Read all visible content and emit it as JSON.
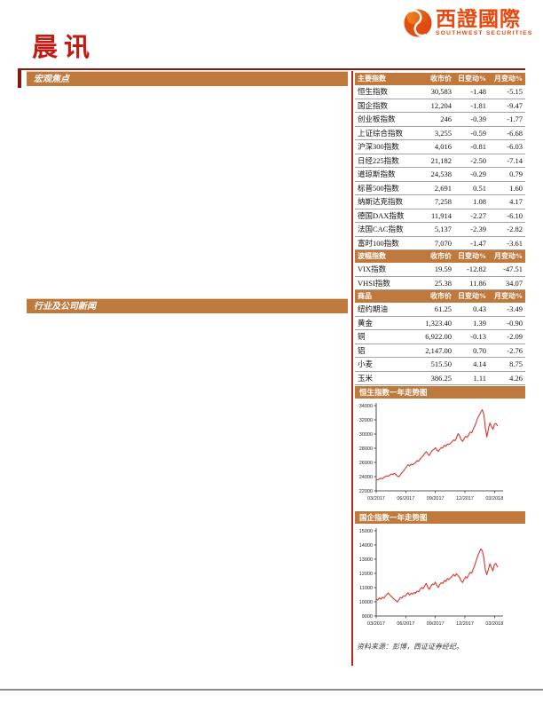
{
  "colors": {
    "accent_orange": "#c0793c",
    "maroon": "#87180e",
    "divider_red": "#c2261a",
    "title_red": "#c01c15",
    "logo_orange": "#e8470d",
    "chart_red": "#d9372b"
  },
  "brand": {
    "name_cn": "西證國際",
    "name_en": "SOUTHWEST SECURITIES"
  },
  "header": {
    "title": "晨讯"
  },
  "left_sections": [
    {
      "label": "宏观焦点"
    },
    {
      "label": "行业及公司新闻"
    }
  ],
  "tables": [
    {
      "id": "major-indices",
      "header": [
        "主要指数",
        "收市价",
        "日变动%",
        "月变动%"
      ],
      "rows": [
        [
          "恒生指数",
          "30,583",
          "-1.48",
          "-5.15"
        ],
        [
          "国企指数",
          "12,204",
          "-1.81",
          "-9.47"
        ],
        [
          "创业板指数",
          "246",
          "-0.39",
          "-1.77"
        ],
        [
          "上证综合指数",
          "3,255",
          "-0.59",
          "-6.68"
        ],
        [
          "沪深300指数",
          "4,016",
          "-0.81",
          "-6.03"
        ],
        [
          "日经225指数",
          "21,182",
          "-2.50",
          "-7.14"
        ],
        [
          "道琼斯指数",
          "24,538",
          "-0.29",
          "0.79"
        ],
        [
          "标普500指数",
          "2,691",
          "0.51",
          "1.60"
        ],
        [
          "纳斯达克指数",
          "7,258",
          "1.08",
          "4.17"
        ],
        [
          "德国DAX指数",
          "11,914",
          "-2.27",
          "-6.10"
        ],
        [
          "法国CAC指数",
          "5,137",
          "-2.39",
          "-2.82"
        ],
        [
          "富时100指数",
          "7,070",
          "-1.47",
          "-3.61"
        ]
      ]
    },
    {
      "id": "volatility-indices",
      "header": [
        "波幅指数",
        "收市价",
        "日变动%",
        "月变动%"
      ],
      "rows": [
        [
          "VIX指数",
          "19.59",
          "-12.82",
          "-47.51"
        ],
        [
          "VHSI指数",
          "25.38",
          "11.86",
          "34.07"
        ]
      ]
    },
    {
      "id": "commodities",
      "header": [
        "商品",
        "收市价",
        "日变动%",
        "月变动%"
      ],
      "rows": [
        [
          "纽约期油",
          "61.25",
          "0.43",
          "-3.49"
        ],
        [
          "黄金",
          "1,323.40",
          "1.39",
          "-0.90"
        ],
        [
          "铜",
          "6,922.00",
          "-0.13",
          "-2.09"
        ],
        [
          "铝",
          "2,147.00",
          "0.70",
          "-2.76"
        ],
        [
          "小麦",
          "515.50",
          "4.14",
          "8.75"
        ],
        [
          "玉米",
          "386.25",
          "1.11",
          "4.26"
        ]
      ]
    }
  ],
  "chart_data": [
    {
      "type": "line",
      "title": "恒生指数一年走势图",
      "x_unit": "months from 03/2017",
      "xlim": [
        0,
        12.6
      ],
      "x_end": 12.3,
      "ylim": [
        22000,
        34000
      ],
      "yticks": [
        22000,
        24000,
        26000,
        28000,
        30000,
        32000,
        34000
      ],
      "xticks": [
        {
          "pos": 0,
          "label": "03/2017"
        },
        {
          "pos": 3,
          "label": "06/2017"
        },
        {
          "pos": 6,
          "label": "09/2017"
        },
        {
          "pos": 9,
          "label": "12/2017"
        },
        {
          "pos": 12,
          "label": "03/2018"
        }
      ],
      "line_color": "#d9372b",
      "values": [
        23620,
        23540,
        23660,
        23780,
        23700,
        23880,
        24000,
        24120,
        24060,
        24220,
        24380,
        24300,
        24480,
        24280,
        24080,
        23980,
        24280,
        24560,
        24800,
        25100,
        25380,
        25680,
        25520,
        25760,
        25660,
        25840,
        25980,
        26280,
        26160,
        26500,
        26760,
        26940,
        27240,
        27520,
        27220,
        26980,
        27380,
        27700,
        27820,
        28080,
        27760,
        27560,
        27880,
        28100,
        28060,
        28420,
        28280,
        28580,
        28520,
        28700,
        28880,
        29180,
        29060,
        29480,
        30060,
        29760,
        29220,
        28960,
        29360,
        29660,
        29520,
        29880,
        30280,
        30180,
        30680,
        31100,
        31680,
        32280,
        32640,
        33080,
        33420,
        32780,
        30880,
        29580,
        30760,
        31560,
        31080,
        30680,
        31380,
        31500,
        31160
      ]
    },
    {
      "type": "line",
      "title": "国企指数一年走势图",
      "x_unit": "months from 03/2017",
      "xlim": [
        0,
        12.6
      ],
      "x_end": 12.3,
      "ylim": [
        9000,
        15000
      ],
      "yticks": [
        9000,
        10000,
        11000,
        12000,
        13000,
        14000,
        15000
      ],
      "xticks": [
        {
          "pos": 0,
          "label": "03/2017"
        },
        {
          "pos": 3,
          "label": "06/2017"
        },
        {
          "pos": 6,
          "label": "09/2017"
        },
        {
          "pos": 9,
          "label": "12/2017"
        },
        {
          "pos": 12,
          "label": "03/2018"
        }
      ],
      "line_color": "#d9372b",
      "values": [
        10220,
        10120,
        10280,
        10180,
        10320,
        10260,
        10400,
        10520,
        10620,
        10480,
        10380,
        10260,
        10160,
        10080,
        9990,
        10160,
        10310,
        10260,
        10420,
        10380,
        10520,
        10640,
        10480,
        10610,
        10540,
        10660,
        10600,
        10760,
        10700,
        10890,
        11010,
        10930,
        11130,
        11290,
        11030,
        10870,
        11090,
        11250,
        11210,
        11390,
        11150,
        11010,
        11230,
        11350,
        11290,
        11510,
        11430,
        11640,
        11560,
        11700,
        11780,
        11930,
        11810,
        11970,
        11850,
        11720,
        11480,
        11360,
        11580,
        11760,
        11680,
        11890,
        12080,
        12010,
        12310,
        12560,
        12900,
        13240,
        13480,
        13720,
        13600,
        13100,
        12250,
        11920,
        12280,
        12680,
        12420,
        12180,
        12620,
        12700,
        12460
      ]
    }
  ],
  "footer": {
    "source": "资料来源：彭博，西证证券经纪。"
  }
}
